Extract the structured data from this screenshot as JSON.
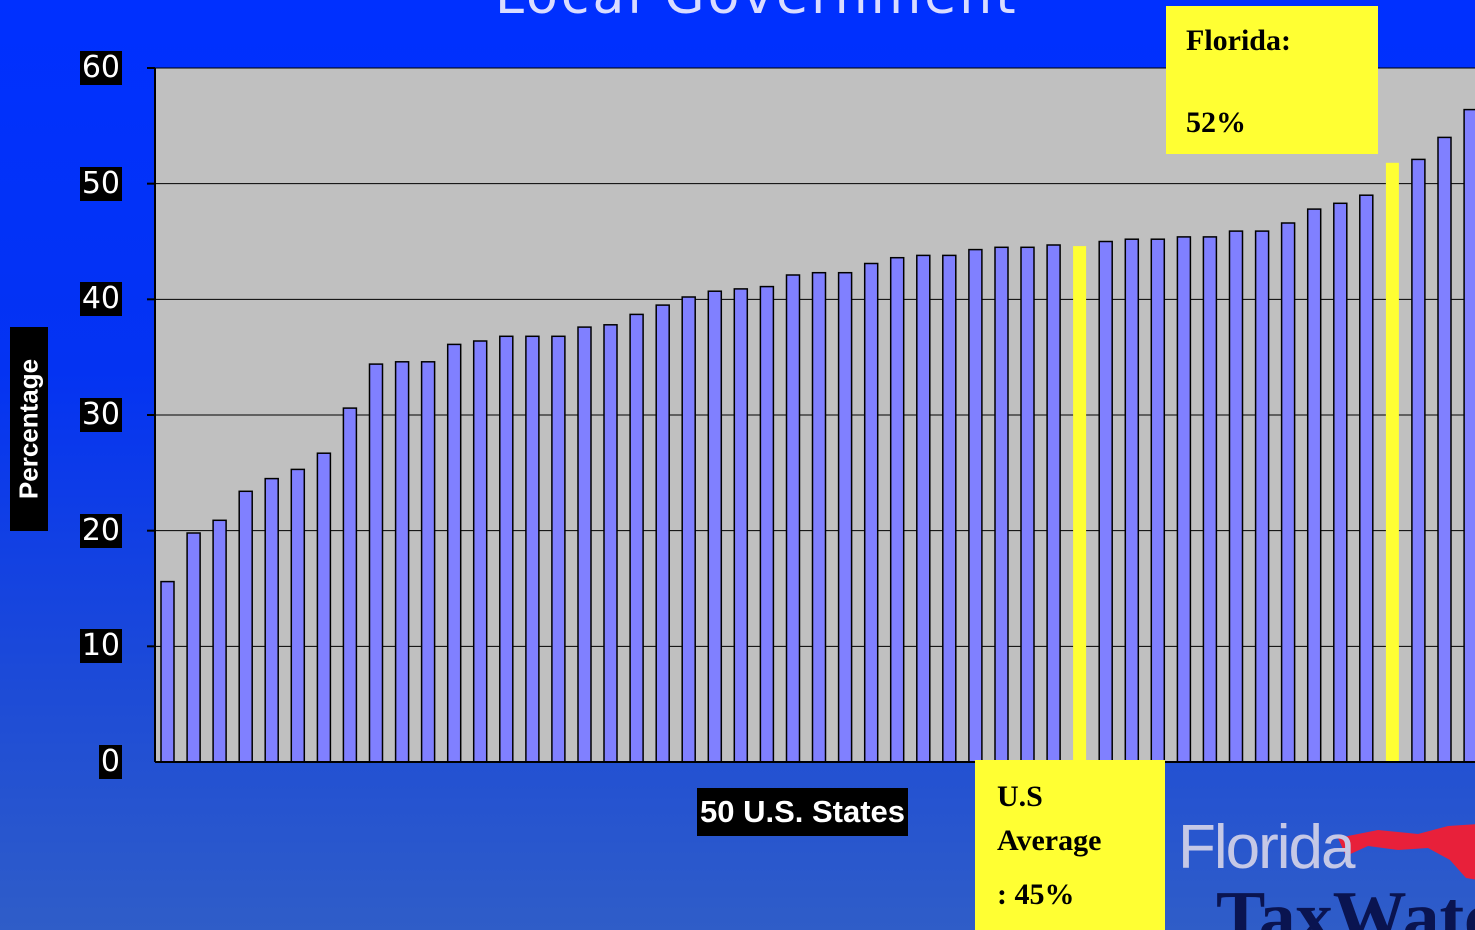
{
  "header": {
    "title_fragment": "Local Government"
  },
  "chart_data": {
    "type": "bar",
    "title": "",
    "ylabel": "Percentage",
    "xlabel": "50 U.S. States",
    "ylim": [
      0,
      60
    ],
    "yticks": [
      "0",
      "10",
      "20",
      "30",
      "40",
      "50",
      "60"
    ],
    "grid": true,
    "bar_color": "#8080ff",
    "highlight_color": "#ffff33",
    "plot_background": "#c0c0c0",
    "values": [
      15.6,
      19.8,
      20.9,
      23.4,
      24.5,
      25.3,
      26.7,
      30.6,
      34.4,
      34.6,
      34.6,
      36.1,
      36.4,
      36.8,
      36.8,
      36.8,
      37.6,
      37.8,
      38.7,
      39.5,
      40.2,
      40.7,
      40.9,
      41.1,
      42.1,
      42.3,
      42.3,
      43.1,
      43.6,
      43.8,
      43.8,
      44.3,
      44.5,
      44.5,
      44.7,
      44.6,
      45.0,
      45.2,
      45.2,
      45.4,
      45.4,
      45.9,
      45.9,
      46.6,
      47.8,
      48.3,
      49.0,
      51.8,
      52.1,
      54.0,
      56.4
    ],
    "highlights": [
      {
        "index": 35,
        "label": "U.S Average"
      },
      {
        "index": 47,
        "label": "Florida"
      }
    ]
  },
  "callouts": {
    "florida": {
      "line1": "Florida:",
      "line2": "52%"
    },
    "us_average": {
      "line1": "U.S",
      "line2": "Average",
      "line3": ": 45%"
    }
  },
  "logo": {
    "text1": "Florida",
    "text2": "TaxWatch",
    "shape_color": "#e8203a"
  }
}
